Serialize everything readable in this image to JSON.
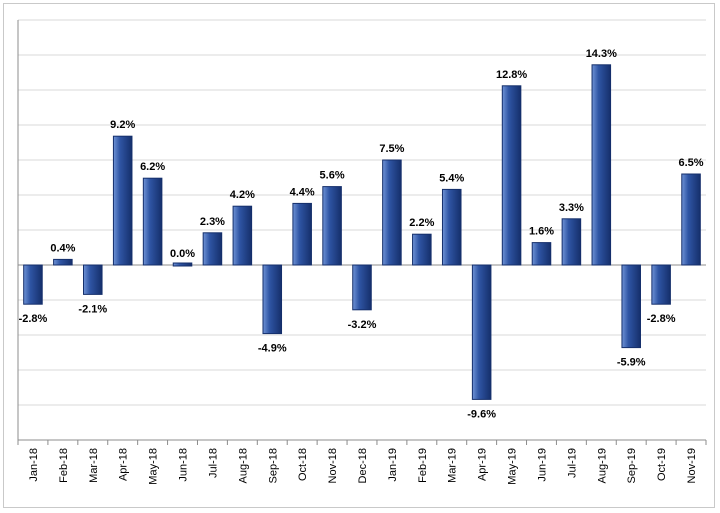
{
  "chart_data": {
    "type": "bar",
    "title": "",
    "xlabel": "",
    "ylabel": "",
    "ylim": [
      -12.5,
      17.5
    ],
    "grid": true,
    "legend": "none",
    "bar_color": "#2f55a4",
    "bar_highlight": "#6f93d6",
    "bar_shadow": "#152f6b",
    "categories": [
      "Jan-18",
      "Feb-18",
      "Mar-18",
      "Apr-18",
      "May-18",
      "Jun-18",
      "Jul-18",
      "Aug-18",
      "Sep-18",
      "Oct-18",
      "Nov-18",
      "Dec-18",
      "Jan-19",
      "Feb-19",
      "Mar-19",
      "Apr-19",
      "May-19",
      "Jun-19",
      "Jul-19",
      "Aug-19",
      "Sep-19",
      "Oct-19",
      "Nov-19"
    ],
    "values": [
      -2.8,
      0.4,
      -2.1,
      9.2,
      6.2,
      0.0,
      2.3,
      4.2,
      -4.9,
      4.4,
      5.6,
      -3.2,
      7.5,
      2.2,
      5.4,
      -9.6,
      12.8,
      1.6,
      3.3,
      14.3,
      -5.9,
      -2.8,
      6.5
    ],
    "value_labels": [
      "-2.8%",
      "0.4%",
      "-2.1%",
      "9.2%",
      "6.2%",
      "0.0%",
      "2.3%",
      "4.2%",
      "-4.9%",
      "4.4%",
      "5.6%",
      "-3.2%",
      "7.5%",
      "2.2%",
      "5.4%",
      "-9.6%",
      "12.8%",
      "1.6%",
      "3.3%",
      "14.3%",
      "-5.9%",
      "-2.8%",
      "6.5%"
    ]
  }
}
